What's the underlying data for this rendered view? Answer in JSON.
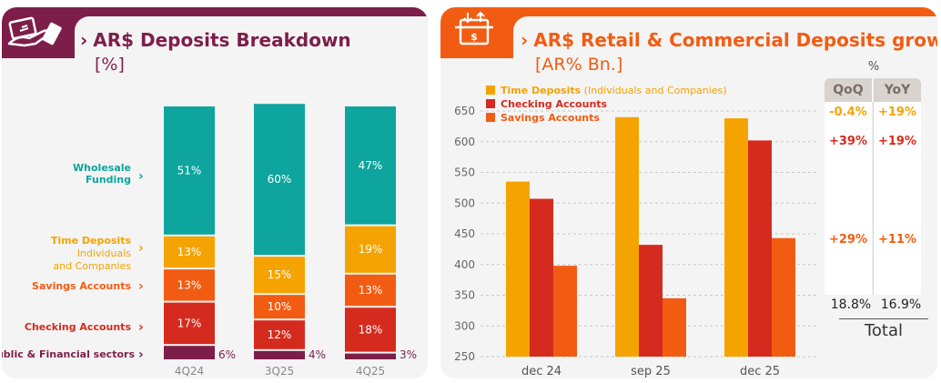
{
  "left": {
    "title": "AR$ Deposits Breakdown",
    "subtitle": "[%]",
    "colors": {
      "header": "#7d1e4a",
      "wholesale": "#0ea59e",
      "time": "#f5a300",
      "savings": "#f25c12",
      "checking": "#d52b1e",
      "public": "#7d1e4a"
    },
    "category_labels": {
      "wholesale": [
        "Wholesale",
        "Funding"
      ],
      "time_title": "Time Deposits",
      "time_sub": [
        "Individuals",
        "and Companies"
      ],
      "savings": "Savings Accounts",
      "checking": "Checking Accounts",
      "public": "Public & Financial sectors"
    }
  },
  "right": {
    "title": "AR$ Retail & Commercial Deposits growth",
    "subtitle": "[AR% Bn.]",
    "legend": {
      "time": "Time Deposits",
      "time_sub": " (Individuals and Companies)",
      "checking": "Checking Accounts",
      "savings": "Savings Accounts"
    },
    "colors": {
      "header": "#f25c12"
    },
    "table": {
      "unit": "%",
      "headers": [
        "QoQ",
        "YoY"
      ],
      "rows": [
        {
          "qoq": "-0.4%",
          "yoy": "+19%",
          "color": "#f5a300"
        },
        {
          "qoq": "+39%",
          "yoy": "+19%",
          "color": "#d52b1e"
        },
        {
          "qoq": "+29%",
          "yoy": "+11%",
          "color": "#f25c12"
        }
      ],
      "total_qoq": "18.8%",
      "total_yoy": "16.9%",
      "total_label": "Total"
    }
  },
  "chart_data": [
    {
      "type": "bar",
      "stacked": true,
      "title": "AR$ Deposits Breakdown",
      "ylabel": "[%]",
      "categories": [
        "4Q24",
        "3Q25",
        "4Q25"
      ],
      "series": [
        {
          "name": "Public & Financial sectors",
          "values": [
            6,
            4,
            3
          ],
          "labels": [
            "6%",
            "4%",
            "3%"
          ]
        },
        {
          "name": "Checking Accounts",
          "values": [
            17,
            12,
            18
          ],
          "labels": [
            "17%",
            "12%",
            "18%"
          ]
        },
        {
          "name": "Savings Accounts",
          "values": [
            13,
            10,
            13
          ],
          "labels": [
            "13%",
            "10%",
            "13%"
          ]
        },
        {
          "name": "Time Deposits Individuals and Companies",
          "values": [
            13,
            15,
            19
          ],
          "labels": [
            "13%",
            "15%",
            "19%"
          ]
        },
        {
          "name": "Wholesale Funding",
          "values": [
            51,
            60,
            47
          ],
          "labels": [
            "51%",
            "60%",
            "47%"
          ]
        }
      ]
    },
    {
      "type": "bar",
      "title": "AR$ Retail & Commercial Deposits growth",
      "ylabel": "[AR% Bn.]",
      "categories": [
        "dec 24",
        "sep 25",
        "dec 25"
      ],
      "ylim": [
        250,
        650
      ],
      "yticks": [
        250,
        300,
        350,
        400,
        450,
        500,
        550,
        600,
        650
      ],
      "series": [
        {
          "name": "Time Deposits",
          "values": [
            535,
            640,
            638
          ]
        },
        {
          "name": "Checking Accounts",
          "values": [
            507,
            432,
            602
          ]
        },
        {
          "name": "Savings Accounts",
          "values": [
            398,
            345,
            443
          ]
        }
      ]
    }
  ]
}
